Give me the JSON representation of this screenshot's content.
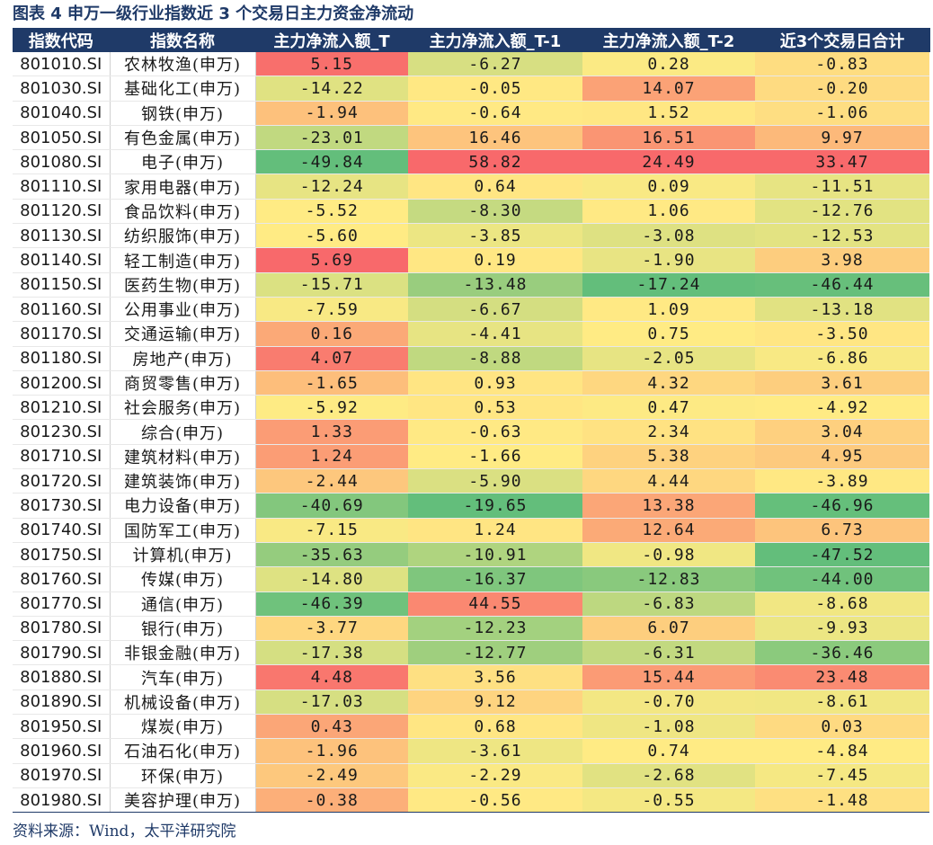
{
  "title": "图表 4 申万一级行业指数近 3 个交易日主力资金净流动",
  "source": "资料来源：Wind，太平洋研究院",
  "headers": [
    "指数代码",
    "指数名称",
    "主力净流入额_T",
    "主力净流入额_T-1",
    "主力净流入额_T-2",
    "近3个交易日合计"
  ],
  "rows": [
    [
      "801010.SI",
      "农林牧渔(申万)",
      "5.15",
      "-6.27",
      "0.28",
      "-0.83"
    ],
    [
      "801030.SI",
      "基础化工(申万)",
      "-14.22",
      "-0.05",
      "14.07",
      "-0.20"
    ],
    [
      "801040.SI",
      "钢铁(申万)",
      "-1.94",
      "-0.64",
      "1.52",
      "-1.06"
    ],
    [
      "801050.SI",
      "有色金属(申万)",
      "-23.01",
      "16.46",
      "16.51",
      "9.97"
    ],
    [
      "801080.SI",
      "电子(申万)",
      "-49.84",
      "58.82",
      "24.49",
      "33.47"
    ],
    [
      "801110.SI",
      "家用电器(申万)",
      "-12.24",
      "0.64",
      "0.09",
      "-11.51"
    ],
    [
      "801120.SI",
      "食品饮料(申万)",
      "-5.52",
      "-8.30",
      "1.06",
      "-12.76"
    ],
    [
      "801130.SI",
      "纺织服饰(申万)",
      "-5.60",
      "-3.85",
      "-3.08",
      "-12.53"
    ],
    [
      "801140.SI",
      "轻工制造(申万)",
      "5.69",
      "0.19",
      "-1.90",
      "3.98"
    ],
    [
      "801150.SI",
      "医药生物(申万)",
      "-15.71",
      "-13.48",
      "-17.24",
      "-46.44"
    ],
    [
      "801160.SI",
      "公用事业(申万)",
      "-7.59",
      "-6.67",
      "1.09",
      "-13.18"
    ],
    [
      "801170.SI",
      "交通运输(申万)",
      "0.16",
      "-4.41",
      "0.75",
      "-3.50"
    ],
    [
      "801180.SI",
      "房地产(申万)",
      "4.07",
      "-8.88",
      "-2.05",
      "-6.86"
    ],
    [
      "801200.SI",
      "商贸零售(申万)",
      "-1.65",
      "0.93",
      "4.32",
      "3.61"
    ],
    [
      "801210.SI",
      "社会服务(申万)",
      "-5.92",
      "0.53",
      "0.47",
      "-4.92"
    ],
    [
      "801230.SI",
      "综合(申万)",
      "1.33",
      "-0.63",
      "2.34",
      "3.04"
    ],
    [
      "801710.SI",
      "建筑材料(申万)",
      "1.24",
      "-1.66",
      "5.38",
      "4.95"
    ],
    [
      "801720.SI",
      "建筑装饰(申万)",
      "-2.44",
      "-5.90",
      "4.44",
      "-3.89"
    ],
    [
      "801730.SI",
      "电力设备(申万)",
      "-40.69",
      "-19.65",
      "13.38",
      "-46.96"
    ],
    [
      "801740.SI",
      "国防军工(申万)",
      "-7.15",
      "1.24",
      "12.64",
      "6.73"
    ],
    [
      "801750.SI",
      "计算机(申万)",
      "-35.63",
      "-10.91",
      "-0.98",
      "-47.52"
    ],
    [
      "801760.SI",
      "传媒(申万)",
      "-14.80",
      "-16.37",
      "-12.83",
      "-44.00"
    ],
    [
      "801770.SI",
      "通信(申万)",
      "-46.39",
      "44.55",
      "-6.83",
      "-8.68"
    ],
    [
      "801780.SI",
      "银行(申万)",
      "-3.77",
      "-12.23",
      "6.07",
      "-9.93"
    ],
    [
      "801790.SI",
      "非银金融(申万)",
      "-17.38",
      "-12.77",
      "-6.31",
      "-36.46"
    ],
    [
      "801880.SI",
      "汽车(申万)",
      "4.48",
      "3.56",
      "15.44",
      "23.48"
    ],
    [
      "801890.SI",
      "机械设备(申万)",
      "-17.03",
      "9.12",
      "-0.70",
      "-8.61"
    ],
    [
      "801950.SI",
      "煤炭(申万)",
      "0.43",
      "0.68",
      "-1.08",
      "0.03"
    ],
    [
      "801960.SI",
      "石油石化(申万)",
      "-1.96",
      "-3.61",
      "0.74",
      "-4.84"
    ],
    [
      "801970.SI",
      "环保(申万)",
      "-2.49",
      "-2.29",
      "-2.68",
      "-7.45"
    ],
    [
      "801980.SI",
      "美容护理(申万)",
      "-0.38",
      "-0.56",
      "-0.55",
      "-1.48"
    ]
  ],
  "colors": {
    "header_bg": "#1f3a68",
    "low": "#63be7b",
    "mid": "#ffeb84",
    "high": "#f8696b"
  }
}
